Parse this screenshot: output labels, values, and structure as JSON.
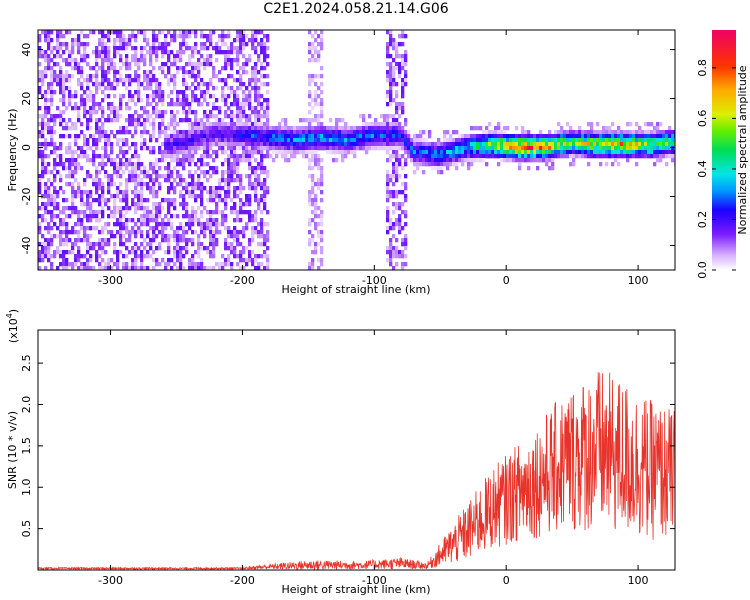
{
  "title": "C2E1.2024.058.21.14.G06",
  "chart_data": [
    {
      "type": "heatmap",
      "xlabel": "Height of straight line (km)",
      "ylabel": "Frequency (Hz)",
      "xlim": [
        -355,
        128
      ],
      "ylim": [
        -50,
        48
      ],
      "xticks": [
        -300,
        -200,
        -100,
        0,
        100
      ],
      "yticks": [
        -40,
        -20,
        0,
        20,
        40
      ],
      "colorbar": {
        "label": "Normalized spectral amplitude",
        "range": [
          0.0,
          0.95
        ],
        "ticks": [
          0.0,
          0.2,
          0.4,
          0.6,
          0.8
        ],
        "tick_labels": [
          "0.0",
          "0.2",
          "0.4",
          "0.6",
          "0.8"
        ]
      },
      "noise_region": {
        "x_range": [
          -355,
          -180
        ],
        "peak_amplitude": 0.15
      },
      "noise_bands": [
        {
          "x_range": [
            -150,
            -140
          ],
          "peak_amplitude": 0.1
        },
        {
          "x_range": [
            -90,
            -76
          ],
          "peak_amplitude": 0.15
        }
      ],
      "signal_track": [
        {
          "x": -260,
          "freq": 0,
          "amplitude": 0.2
        },
        {
          "x": -220,
          "freq": 6,
          "amplitude": 0.2
        },
        {
          "x": -180,
          "freq": 4,
          "amplitude": 0.3
        },
        {
          "x": -160,
          "freq": 3,
          "amplitude": 0.35
        },
        {
          "x": -140,
          "freq": 4,
          "amplitude": 0.35
        },
        {
          "x": -120,
          "freq": 3,
          "amplitude": 0.35
        },
        {
          "x": -100,
          "freq": 5,
          "amplitude": 0.3
        },
        {
          "x": -80,
          "freq": 5,
          "amplitude": 0.25
        },
        {
          "x": -70,
          "freq": -2,
          "amplitude": 0.3
        },
        {
          "x": -50,
          "freq": -3,
          "amplitude": 0.35
        },
        {
          "x": -30,
          "freq": 0,
          "amplitude": 0.4
        },
        {
          "x": -10,
          "freq": 1,
          "amplitude": 0.6
        },
        {
          "x": 10,
          "freq": 0,
          "amplitude": 0.9
        },
        {
          "x": 30,
          "freq": 0,
          "amplitude": 0.75
        },
        {
          "x": 50,
          "freq": 2,
          "amplitude": 0.55
        },
        {
          "x": 70,
          "freq": 1,
          "amplitude": 0.7
        },
        {
          "x": 90,
          "freq": 1,
          "amplitude": 0.75
        },
        {
          "x": 110,
          "freq": 1,
          "amplitude": 0.6
        },
        {
          "x": 125,
          "freq": 2,
          "amplitude": 0.55
        }
      ]
    },
    {
      "type": "line",
      "xlabel": "Height of straight line (km)",
      "ylabel": "SNR (10 * v/v)",
      "y_multiplier_label": "(x10",
      "y_multiplier_exp": "4",
      "xlim": [
        -355,
        128
      ],
      "ylim": [
        0,
        2.9
      ],
      "xticks": [
        -300,
        -200,
        -100,
        0,
        100
      ],
      "yticks": [
        0.5,
        1.0,
        1.5,
        2.0,
        2.5
      ],
      "ytick_labels": [
        "0.5",
        "1.0",
        "1.5",
        "2.0",
        "2.5"
      ],
      "series_color": "#e8332a",
      "envelope": [
        {
          "x": -355,
          "mean": 0.02,
          "spread": 0.01
        },
        {
          "x": -200,
          "mean": 0.02,
          "spread": 0.01
        },
        {
          "x": -180,
          "mean": 0.04,
          "spread": 0.03
        },
        {
          "x": -150,
          "mean": 0.06,
          "spread": 0.06
        },
        {
          "x": -110,
          "mean": 0.06,
          "spread": 0.05
        },
        {
          "x": -80,
          "mean": 0.08,
          "spread": 0.07
        },
        {
          "x": -60,
          "mean": 0.05,
          "spread": 0.04
        },
        {
          "x": -45,
          "mean": 0.25,
          "spread": 0.2
        },
        {
          "x": -30,
          "mean": 0.45,
          "spread": 0.35
        },
        {
          "x": -10,
          "mean": 0.75,
          "spread": 0.5
        },
        {
          "x": 10,
          "mean": 0.95,
          "spread": 0.6
        },
        {
          "x": 30,
          "mean": 1.15,
          "spread": 0.75
        },
        {
          "x": 50,
          "mean": 1.35,
          "spread": 0.9
        },
        {
          "x": 70,
          "mean": 1.45,
          "spread": 1.0
        },
        {
          "x": 90,
          "mean": 1.35,
          "spread": 0.95
        },
        {
          "x": 110,
          "mean": 1.2,
          "spread": 0.85
        },
        {
          "x": 128,
          "mean": 1.15,
          "spread": 0.8
        }
      ]
    }
  ]
}
